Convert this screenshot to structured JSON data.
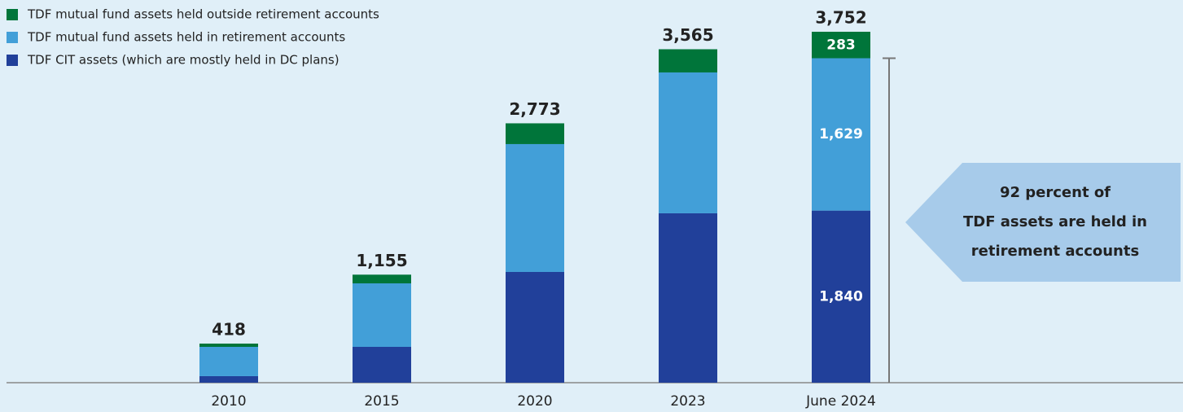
{
  "chart_data": {
    "type": "stacked_bar",
    "categories": [
      "2010",
      "2015",
      "2020",
      "2023",
      "June 2024"
    ],
    "series": [
      {
        "name": "TDF CIT assets (which are mostly held in DC plans)",
        "color": "#21409a",
        "values": [
          70,
          383,
          1184,
          1811,
          1840
        ],
        "value_labels": [
          null,
          null,
          null,
          null,
          "1,840"
        ]
      },
      {
        "name": "TDF mutual fund assets held in retirement accounts",
        "color": "#429fd8",
        "values": [
          313,
          679,
          1367,
          1506,
          1629
        ],
        "value_labels": [
          null,
          null,
          null,
          null,
          "1,629"
        ]
      },
      {
        "name": "TDF mutual fund assets held outside retirement accounts",
        "color": "#00753a",
        "values": [
          35,
          93,
          222,
          248,
          283
        ],
        "value_labels": [
          null,
          null,
          null,
          null,
          "283"
        ]
      }
    ],
    "totals": [
      418,
      1155,
      2773,
      3565,
      3752
    ],
    "totals_labels": [
      "418",
      "1,155",
      "2,773",
      "3,565",
      "3,752"
    ],
    "annotation": [
      "92 percent of",
      "TDF assets are held in",
      "retirement accounts"
    ],
    "legend": "top-left"
  }
}
